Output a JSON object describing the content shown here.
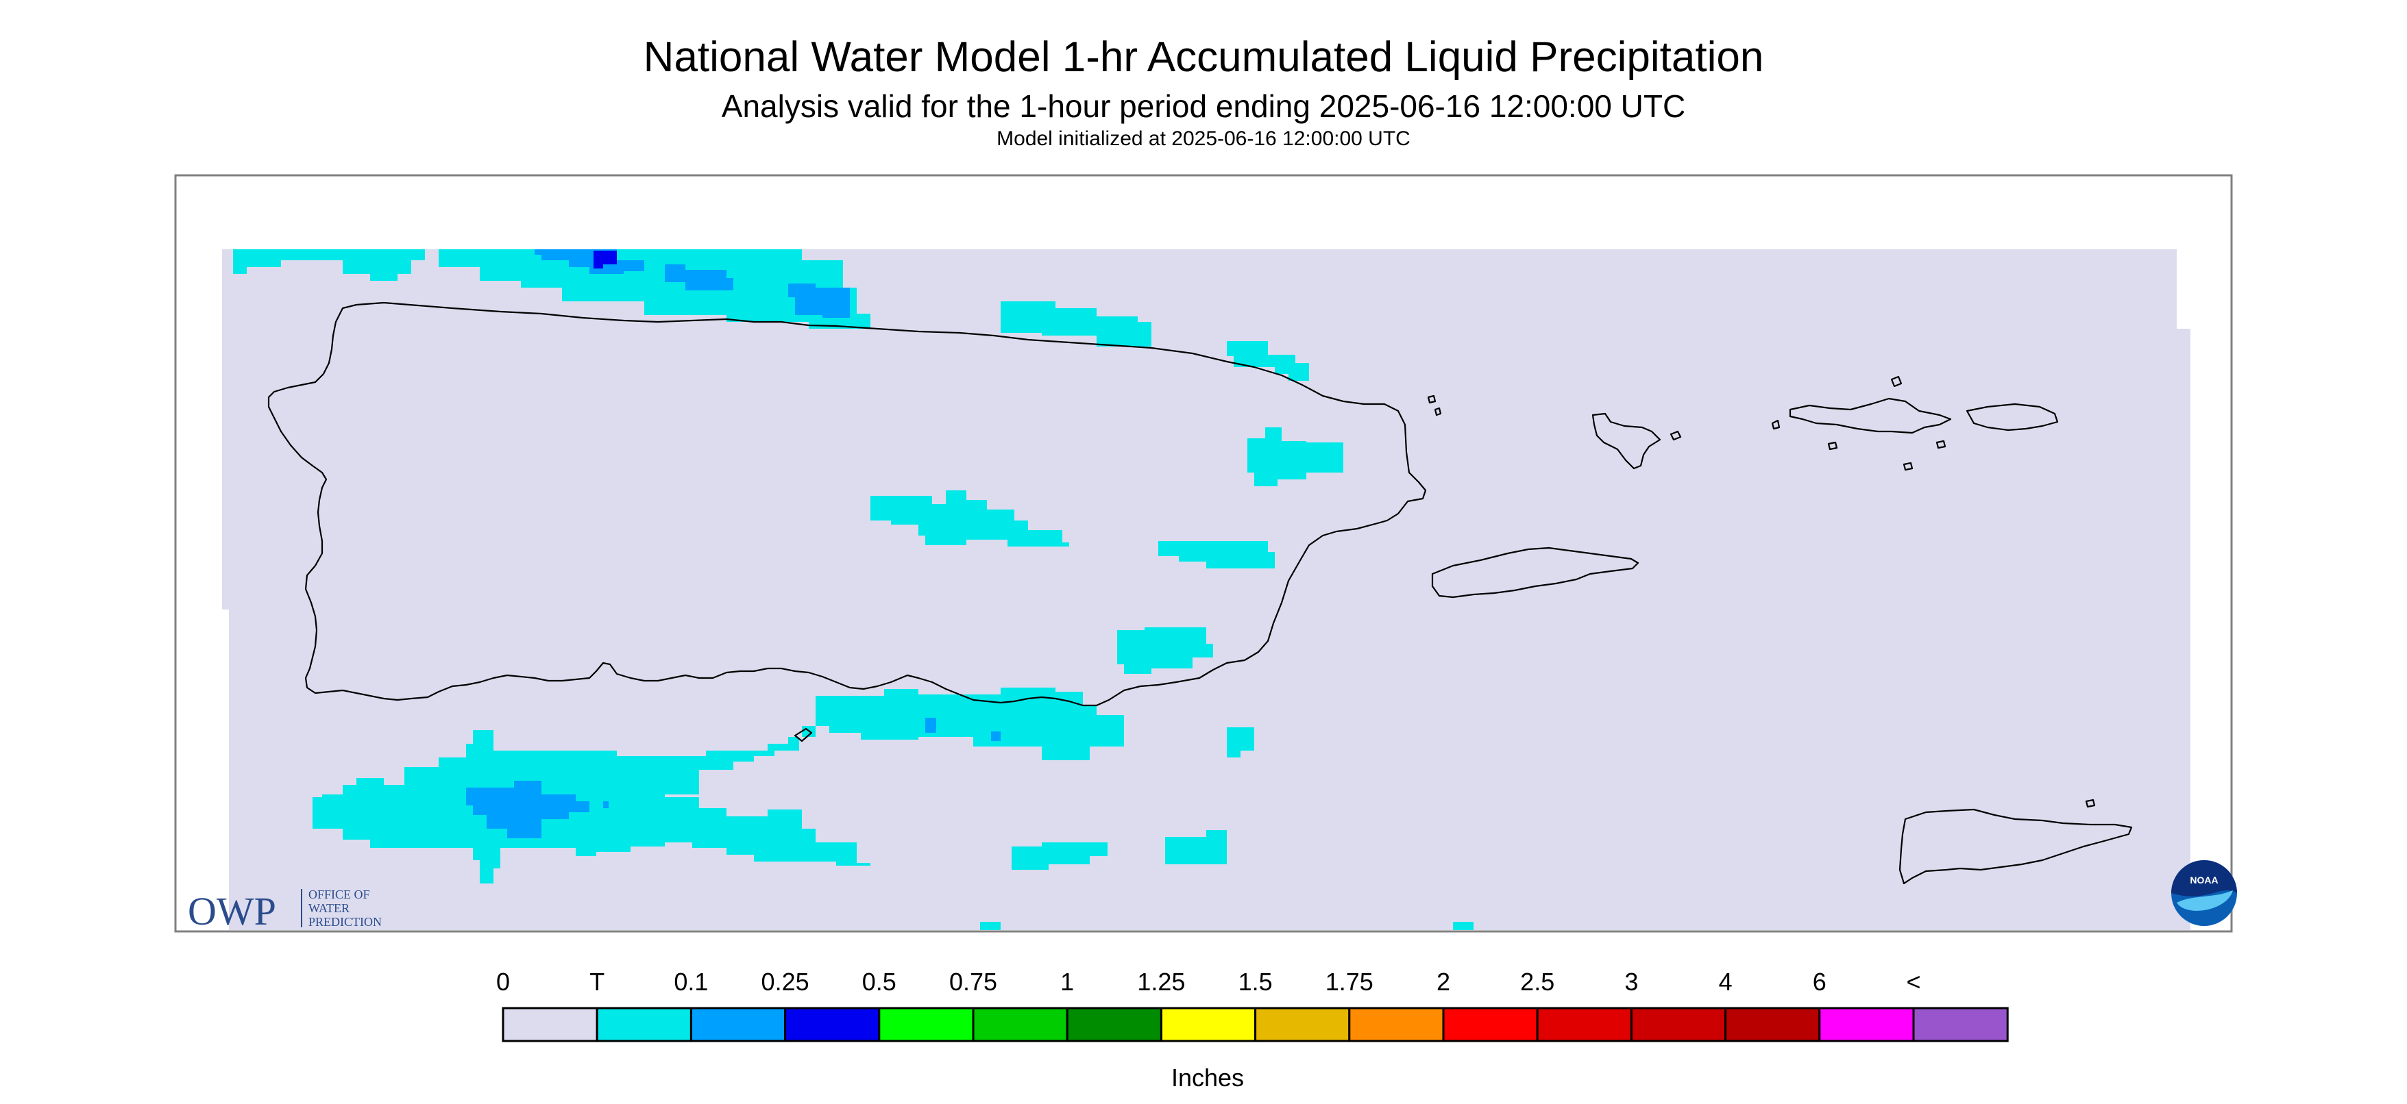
{
  "title": "National Water Model 1-hr Accumulated Liquid Precipitation",
  "subtitle": "Analysis valid for the 1-hour period ending 2025-06-16 12:00:00 UTC",
  "init_note": "Model initialized at 2025-06-16 12:00:00 UTC",
  "map": {
    "background_color": "#dcdcee",
    "outline_color": "#000000"
  },
  "logos": {
    "owp": {
      "mark": "OWP",
      "line1": "OFFICE OF",
      "line2": "WATER",
      "line3": "PREDICTION"
    },
    "noaa": {
      "text": "NOAA"
    }
  },
  "legend": {
    "unit_label": "Inches",
    "bins": [
      {
        "label": "0",
        "color": "#dcdcee"
      },
      {
        "label": "T",
        "color": "#00e8e8"
      },
      {
        "label": "0.1",
        "color": "#00a0ff"
      },
      {
        "label": "0.25",
        "color": "#0000f0"
      },
      {
        "label": "0.5",
        "color": "#00ff00"
      },
      {
        "label": "0.75",
        "color": "#00cc00"
      },
      {
        "label": "1",
        "color": "#008c00"
      },
      {
        "label": "1.25",
        "color": "#ffff00"
      },
      {
        "label": "1.5",
        "color": "#e6b800"
      },
      {
        "label": "1.75",
        "color": "#ff8c00"
      },
      {
        "label": "2",
        "color": "#ff0000"
      },
      {
        "label": "2.5",
        "color": "#e00000"
      },
      {
        "label": "3",
        "color": "#cc0000"
      },
      {
        "label": "4",
        "color": "#b80000"
      },
      {
        "label": "6",
        "color": "#ff00ff"
      }
    ],
    "last_bin_color": "#9955cc",
    "end_label": "<"
  }
}
